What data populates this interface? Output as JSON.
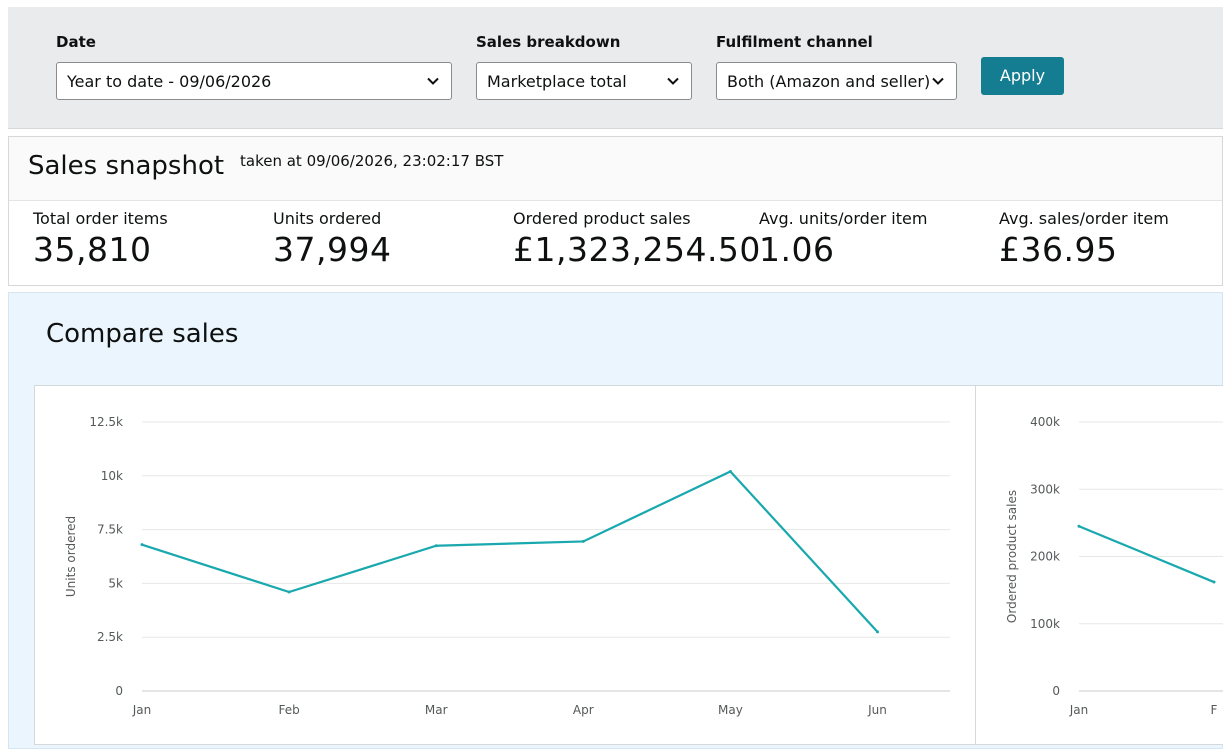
{
  "filters": {
    "date": {
      "label": "Date",
      "value": "Year to date - 09/06/2026"
    },
    "breakdown": {
      "label": "Sales breakdown",
      "value": "Marketplace total"
    },
    "channel": {
      "label": "Fulfilment channel",
      "value": "Both (Amazon and seller)"
    },
    "apply_label": "Apply"
  },
  "snapshot": {
    "title": "Sales snapshot",
    "taken_at": "taken at 09/06/2026, 23:02:17 BST",
    "metrics": [
      {
        "label": "Total order items",
        "value": "35,810"
      },
      {
        "label": "Units ordered",
        "value": "37,994"
      },
      {
        "label": "Ordered product sales",
        "value": "£1,323,254.50"
      },
      {
        "label": "Avg. units/order item",
        "value": "1.06"
      },
      {
        "label": "Avg. sales/order item",
        "value": "£36.95"
      }
    ]
  },
  "compare": {
    "title": "Compare sales"
  },
  "colors": {
    "line": "#18a8ae",
    "apply": "#147d91"
  },
  "chart_data": [
    {
      "type": "line",
      "categories": [
        "Jan",
        "Feb",
        "Mar",
        "Apr",
        "May",
        "Jun"
      ],
      "series": [
        {
          "values": [
            6800,
            4600,
            6750,
            6950,
            10200,
            2750
          ]
        }
      ],
      "ylabel": "Units ordered",
      "ylim": [
        0,
        12500
      ],
      "yticks": [
        0,
        2500,
        5000,
        7500,
        10000,
        12500
      ],
      "ytick_labels": [
        "0",
        "2.5k",
        "5k",
        "7.5k",
        "10k",
        "12.5k"
      ],
      "grid": true
    },
    {
      "type": "line",
      "categories": [
        "Jan",
        "F"
      ],
      "series": [
        {
          "values": [
            245000,
            162000
          ]
        }
      ],
      "ylabel": "Ordered product sales",
      "ylim": [
        0,
        400000
      ],
      "yticks": [
        0,
        100000,
        200000,
        300000,
        400000
      ],
      "ytick_labels": [
        "0",
        "100k",
        "200k",
        "300k",
        "400k"
      ],
      "grid": true
    }
  ]
}
